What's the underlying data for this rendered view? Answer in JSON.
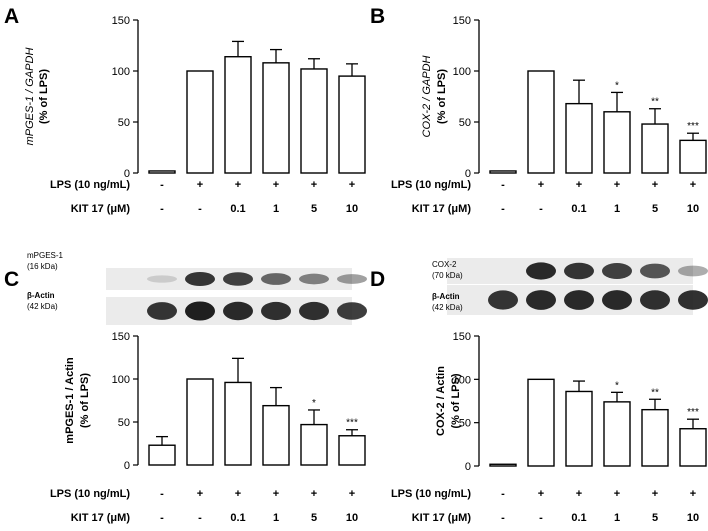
{
  "panels": [
    {
      "letter": "A"
    },
    {
      "letter": "B"
    },
    {
      "letter": "C",
      "blot": [
        {
          "name": "mPGES-1",
          "kda": "(16 kDa)"
        },
        {
          "name": "β-Actin",
          "kda": "(42 kDa)"
        }
      ]
    },
    {
      "letter": "D",
      "blot": [
        {
          "name": "COX-2",
          "kda": "(70 kDa)"
        },
        {
          "name": "β-Actin",
          "kda": "(42 kDa)"
        }
      ]
    }
  ],
  "treatment_rows": {
    "lps_label": "LPS (10 ng/mL)",
    "lps_values": [
      "-",
      "+",
      "+",
      "+",
      "+",
      "+"
    ],
    "kit_label": "KIT 17 (μM)",
    "kit_values": [
      "-",
      "-",
      "0.1",
      "1",
      "5",
      "10"
    ]
  },
  "blot_colors": {
    "band": "#141414",
    "background": "#ebebeb"
  },
  "chart_data": [
    {
      "type": "bar",
      "panel": "A",
      "ylabel_line1": "mPGES-1 / GAPDH",
      "ylabel_line2": "(% of LPS)",
      "ylim": [
        0,
        150
      ],
      "yticks": [
        0,
        50,
        100,
        150
      ],
      "categories": [
        "-/-",
        "+/-",
        "+/0.1",
        "+/1",
        "+/5",
        "+/10"
      ],
      "values": [
        2,
        100,
        114,
        108,
        102,
        95
      ],
      "errors": [
        0,
        0,
        15,
        13,
        10,
        12
      ],
      "significance": [
        "",
        "",
        "",
        "",
        "",
        ""
      ]
    },
    {
      "type": "bar",
      "panel": "B",
      "ylabel_line1": "COX-2 / GAPDH",
      "ylabel_line2": "(% of LPS)",
      "ylim": [
        0,
        150
      ],
      "yticks": [
        0,
        50,
        100,
        150
      ],
      "categories": [
        "-/-",
        "+/-",
        "+/0.1",
        "+/1",
        "+/5",
        "+/10"
      ],
      "values": [
        2,
        100,
        68,
        60,
        48,
        32
      ],
      "errors": [
        0,
        0,
        23,
        19,
        15,
        7
      ],
      "significance": [
        "",
        "",
        "",
        "*",
        "**",
        "***"
      ]
    },
    {
      "type": "bar",
      "panel": "C",
      "ylabel_line1": "mPGES-1 / Actin",
      "ylabel_line2": "(% of LPS)",
      "ylim": [
        0,
        150
      ],
      "yticks": [
        0,
        50,
        100,
        150
      ],
      "categories": [
        "-/-",
        "+/-",
        "+/0.1",
        "+/1",
        "+/5",
        "+/10"
      ],
      "values": [
        23,
        100,
        96,
        69,
        47,
        34
      ],
      "errors": [
        10,
        0,
        28,
        21,
        17,
        7
      ],
      "significance": [
        "",
        "",
        "",
        "",
        "*",
        "***"
      ],
      "band_intensity": {
        "top": [
          0.15,
          0.85,
          0.8,
          0.62,
          0.5,
          0.4
        ],
        "bottom": [
          0.85,
          0.95,
          0.9,
          0.88,
          0.88,
          0.82
        ]
      }
    },
    {
      "type": "bar",
      "panel": "D",
      "ylabel_line1": "COX-2 / Actin",
      "ylabel_line2": "(% of LPS)",
      "ylim": [
        0,
        150
      ],
      "yticks": [
        0,
        50,
        100,
        150
      ],
      "categories": [
        "-/-",
        "+/-",
        "+/0.1",
        "+/1",
        "+/5",
        "+/10"
      ],
      "values": [
        2,
        100,
        86,
        74,
        65,
        43
      ],
      "errors": [
        0,
        0,
        12,
        11,
        12,
        11
      ],
      "significance": [
        "",
        "",
        "",
        "*",
        "**",
        "***"
      ],
      "band_intensity": {
        "top": [
          0.0,
          0.9,
          0.85,
          0.8,
          0.7,
          0.35
        ],
        "bottom": [
          0.85,
          0.9,
          0.9,
          0.9,
          0.88,
          0.88
        ]
      }
    }
  ]
}
